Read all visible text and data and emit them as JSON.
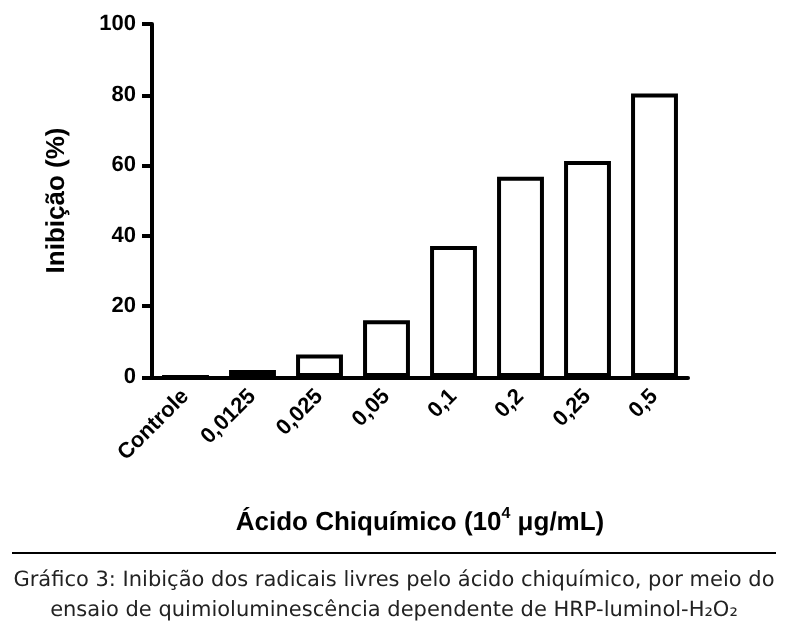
{
  "chart_data": {
    "type": "bar",
    "xlabel": "Ácido Chiquímico (10$^{4}$ μg/mL)",
    "ylabel": "Inibição (%)",
    "categories": [
      "Controle",
      "0,0125",
      "0,025",
      "0,05",
      "0,1",
      "0,2",
      "0,25",
      "0,5"
    ],
    "values": [
      0,
      2,
      6.4,
      16.1,
      37.1,
      56.7,
      61.2,
      80.3
    ],
    "color": "#ffffff",
    "ylim": [
      0,
      100
    ],
    "yticks": [
      0,
      20,
      40,
      60,
      80,
      100
    ],
    "grid": false,
    "annotations": [
      "Gráfico 3: Inibição dos radicais livres pelo ácido chiquímico, por meio do ensaio de quimioluminescência dependente de HRP-luminol-H₂O₂"
    ]
  }
}
